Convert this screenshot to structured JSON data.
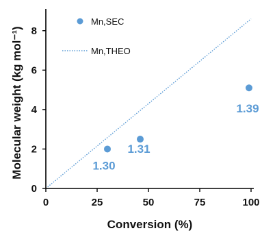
{
  "colors": {
    "series": "#5b9bd5",
    "axis": "#000000",
    "text": "#111111"
  },
  "chart_data": {
    "type": "scatter",
    "title": "",
    "xlabel": "Conversion (%)",
    "ylabel": "Molecular weight (kg mol⁻¹)",
    "xlim": [
      0,
      100
    ],
    "ylim": [
      0,
      9
    ],
    "x_ticks": [
      {
        "value": 0,
        "label": "0"
      },
      {
        "value": 25,
        "label": "25"
      },
      {
        "value": 50,
        "label": "50"
      },
      {
        "value": 75,
        "label": "75"
      },
      {
        "value": 100,
        "label": "100"
      }
    ],
    "y_ticks": [
      {
        "value": 0,
        "label": "0"
      },
      {
        "value": 2,
        "label": "2"
      },
      {
        "value": 4,
        "label": "4"
      },
      {
        "value": 6,
        "label": "6"
      },
      {
        "value": 8,
        "label": "8"
      }
    ],
    "grid": false,
    "legend_position": "top-left",
    "series": [
      {
        "name": "Mn,SEC",
        "type": "scatter",
        "marker": "circle",
        "points": [
          {
            "x": 30,
            "y": 2.0,
            "label": "1.30"
          },
          {
            "x": 46,
            "y": 2.5,
            "label": "1.31"
          },
          {
            "x": 99,
            "y": 5.1,
            "label": "1.39"
          }
        ]
      },
      {
        "name": "Mn,THEO",
        "type": "line",
        "style": "dotted",
        "points": [
          {
            "x": 0,
            "y": 0
          },
          {
            "x": 100,
            "y": 8.6
          }
        ]
      }
    ]
  }
}
